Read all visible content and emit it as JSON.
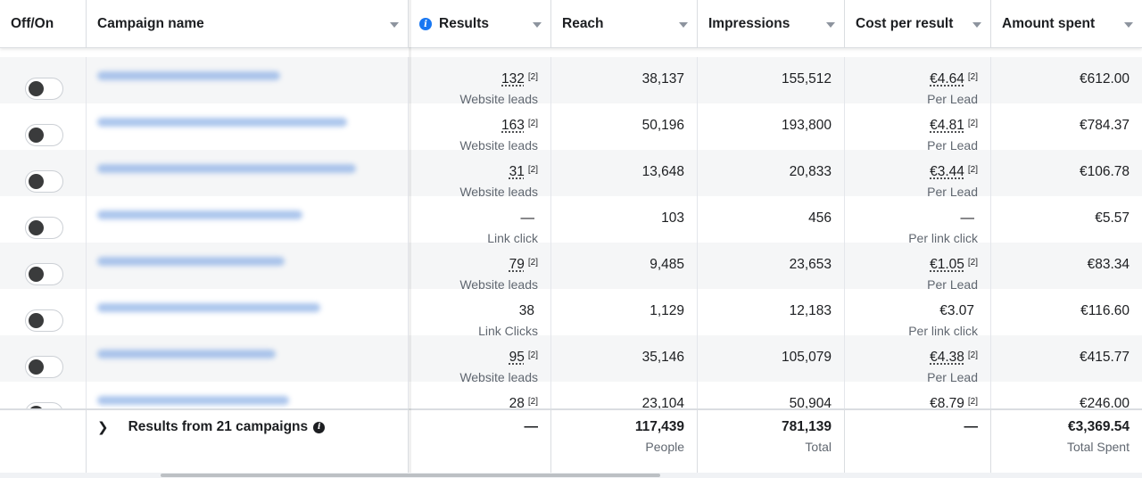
{
  "columns": {
    "toggle": "Off/On",
    "name": "Campaign name",
    "results": "Results",
    "reach": "Reach",
    "impressions": "Impressions",
    "cpr": "Cost per result",
    "amount": "Amount spent"
  },
  "rows": [
    {
      "results": "132",
      "results_type": "Website leads",
      "reach": "38,137",
      "impressions": "155,512",
      "cpr": "€4.64",
      "cpr_type": "Per Lead",
      "amount": "€612.00",
      "footnote": "[2]",
      "cpr_footnote": "[2]"
    },
    {
      "results": "163",
      "results_type": "Website leads",
      "reach": "50,196",
      "impressions": "193,800",
      "cpr": "€4.81",
      "cpr_type": "Per Lead",
      "amount": "€784.37",
      "footnote": "[2]",
      "cpr_footnote": "[2]"
    },
    {
      "results": "31",
      "results_type": "Website leads",
      "reach": "13,648",
      "impressions": "20,833",
      "cpr": "€3.44",
      "cpr_type": "Per Lead",
      "amount": "€106.78",
      "footnote": "[2]",
      "cpr_footnote": "[2]"
    },
    {
      "results": "—",
      "results_type": "Link click",
      "reach": "103",
      "impressions": "456",
      "cpr": "—",
      "cpr_type": "Per link click",
      "amount": "€5.57",
      "footnote": "",
      "cpr_footnote": ""
    },
    {
      "results": "79",
      "results_type": "Website leads",
      "reach": "9,485",
      "impressions": "23,653",
      "cpr": "€1.05",
      "cpr_type": "Per Lead",
      "amount": "€83.34",
      "footnote": "[2]",
      "cpr_footnote": "[2]"
    },
    {
      "results": "38",
      "results_type": "Link Clicks",
      "reach": "1,129",
      "impressions": "12,183",
      "cpr": "€3.07",
      "cpr_type": "Per link click",
      "amount": "€116.60",
      "footnote": "",
      "cpr_footnote": ""
    },
    {
      "results": "95",
      "results_type": "Website leads",
      "reach": "35,146",
      "impressions": "105,079",
      "cpr": "€4.38",
      "cpr_type": "Per Lead",
      "amount": "€415.77",
      "footnote": "[2]",
      "cpr_footnote": "[2]"
    },
    {
      "results": "28",
      "results_type": "",
      "reach": "23,104",
      "impressions": "50,904",
      "cpr": "€8.79",
      "cpr_type": "",
      "amount": "€246.00",
      "footnote": "[2]",
      "cpr_footnote": "[2]"
    }
  ],
  "summary": {
    "label": "Results from 21 campaigns",
    "results": "—",
    "reach": "117,439",
    "reach_sub": "People",
    "impressions": "781,139",
    "impressions_sub": "Total",
    "cpr": "—",
    "amount": "€3,369.54",
    "amount_sub": "Total Spent"
  },
  "icons": {
    "results_header": "info-icon",
    "summary": "info-icon",
    "expand": "chevron-right-icon",
    "sort": "caret-down-icon"
  },
  "colors": {
    "accent": "#1877f2",
    "toggle_knob": "#3a3b3c",
    "alt_row": "#f5f6f7"
  }
}
